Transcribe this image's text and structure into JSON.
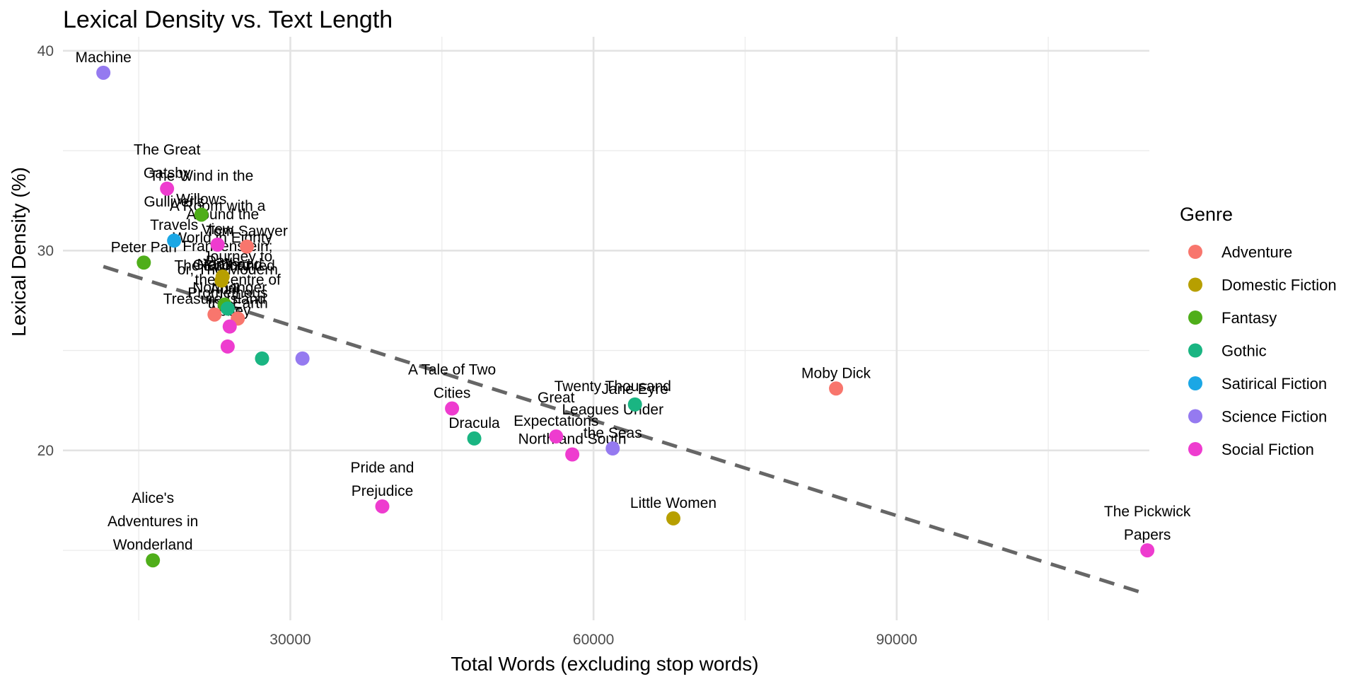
{
  "chart_data": {
    "type": "scatter",
    "title": "Lexical Density vs. Text Length",
    "xlabel": "Total Words (excluding stop words)",
    "ylabel": "Lexical Density (%)",
    "xlim": [
      7500,
      115000
    ],
    "ylim": [
      11.5,
      40.7
    ],
    "x_ticks": [
      30000,
      60000,
      90000
    ],
    "x_tick_labels": [
      "30000",
      "60000",
      "90000"
    ],
    "x_minor_ticks": [
      15000,
      45000,
      75000,
      105000
    ],
    "y_ticks": [
      20,
      30,
      40
    ],
    "y_tick_labels": [
      "20",
      "30",
      "40"
    ],
    "y_minor_ticks": [
      15,
      25,
      35
    ],
    "grid": true,
    "legend_title": "Genre",
    "legend_position": "right",
    "genres": [
      {
        "name": "Adventure",
        "color": "#F8766D"
      },
      {
        "name": "Domestic Fiction",
        "color": "#B79F00"
      },
      {
        "name": "Fantasy",
        "color": "#4FAE1A"
      },
      {
        "name": "Gothic",
        "color": "#1AB582"
      },
      {
        "name": "Satirical Fiction",
        "color": "#1BA7E5"
      },
      {
        "name": "Science Fiction",
        "color": "#957AF0"
      },
      {
        "name": "Social Fiction",
        "color": "#EE3CCF"
      }
    ],
    "trend_line": {
      "type": "linear",
      "style": "dashed",
      "color": "#666666",
      "x": [
        11500,
        114800
      ],
      "y": [
        29.2,
        12.8
      ]
    },
    "points": [
      {
        "label": [
          "Machine"
        ],
        "genre": "Science Fiction",
        "x": 11500,
        "y": 38.9
      },
      {
        "label": [
          "The Great",
          "Gatsby"
        ],
        "genre": "Social Fiction",
        "x": 17800,
        "y": 33.1
      },
      {
        "label": [
          "The Wind in the",
          "Willows"
        ],
        "genre": "Fantasy",
        "x": 21200,
        "y": 31.8
      },
      {
        "label": [
          "Gulliver's",
          "Travels"
        ],
        "genre": "Satirical Fiction",
        "x": 18500,
        "y": 30.5
      },
      {
        "label": [
          "A Room with a",
          "View"
        ],
        "genre": "Social Fiction",
        "x": 22800,
        "y": 30.3
      },
      {
        "label": [
          "Tom Sawyer"
        ],
        "genre": "Adventure",
        "x": 25700,
        "y": 30.2
      },
      {
        "label": [
          "Around the",
          "World in Eighty",
          "Days"
        ],
        "genre": "Domestic Fiction",
        "x": 23300,
        "y": 28.7
      },
      {
        "label": [
          "Peter Pan"
        ],
        "genre": "Fantasy",
        "x": 15500,
        "y": 29.4
      },
      {
        "label": [
          "Cranford"
        ],
        "genre": "Domestic Fiction",
        "x": 23200,
        "y": 28.5
      },
      {
        "label": [
          "The Enchanted",
          "April"
        ],
        "genre": "Fantasy",
        "x": 23500,
        "y": 27.3
      },
      {
        "label": [
          "Frankenstein;",
          "or, The Modern",
          "Prometheus"
        ],
        "genre": "Gothic",
        "x": 23800,
        "y": 27.1
      },
      {
        "label": [
          "Treasure Island"
        ],
        "genre": "Adventure",
        "x": 22500,
        "y": 26.8
      },
      {
        "label": [
          "Journey to",
          "the Centre of",
          "the Earth"
        ],
        "genre": "Adventure",
        "x": 24800,
        "y": 26.6
      },
      {
        "label": [
          "North and",
          "Northanger",
          "Abbey"
        ],
        "genre": "Social Fiction",
        "x": 24000,
        "y": 26.2
      },
      {
        "label": [],
        "genre": "Social Fiction",
        "x": 23800,
        "y": 25.2
      },
      {
        "label": [],
        "genre": "Gothic",
        "x": 27200,
        "y": 24.6
      },
      {
        "label": [],
        "genre": "Science Fiction",
        "x": 31200,
        "y": 24.6
      },
      {
        "label": [
          "A Tale of Two",
          "Cities"
        ],
        "genre": "Social Fiction",
        "x": 46000,
        "y": 22.1
      },
      {
        "label": [
          "Dracula"
        ],
        "genre": "Gothic",
        "x": 48200,
        "y": 20.6
      },
      {
        "label": [
          "Great",
          "Expectations"
        ],
        "genre": "Social Fiction",
        "x": 56300,
        "y": 20.7
      },
      {
        "label": [
          "North and South"
        ],
        "genre": "Social Fiction",
        "x": 57900,
        "y": 19.8
      },
      {
        "label": [
          "Twenty Thousand",
          "Leagues Under",
          "the Seas"
        ],
        "genre": "Science Fiction",
        "x": 61900,
        "y": 20.1
      },
      {
        "label": [
          "Jane Eyre"
        ],
        "genre": "Gothic",
        "x": 64100,
        "y": 22.3
      },
      {
        "label": [
          "Moby Dick"
        ],
        "genre": "Adventure",
        "x": 84000,
        "y": 23.1
      },
      {
        "label": [
          "Pride and",
          "Prejudice"
        ],
        "genre": "Social Fiction",
        "x": 39100,
        "y": 17.2
      },
      {
        "label": [
          "Little Women"
        ],
        "genre": "Domestic Fiction",
        "x": 67900,
        "y": 16.6
      },
      {
        "label": [
          "Alice's",
          "Adventures in",
          "Wonderland"
        ],
        "genre": "Fantasy",
        "x": 16400,
        "y": 14.5
      },
      {
        "label": [
          "The Pickwick",
          "Papers"
        ],
        "genre": "Social Fiction",
        "x": 114800,
        "y": 15.0
      }
    ]
  }
}
